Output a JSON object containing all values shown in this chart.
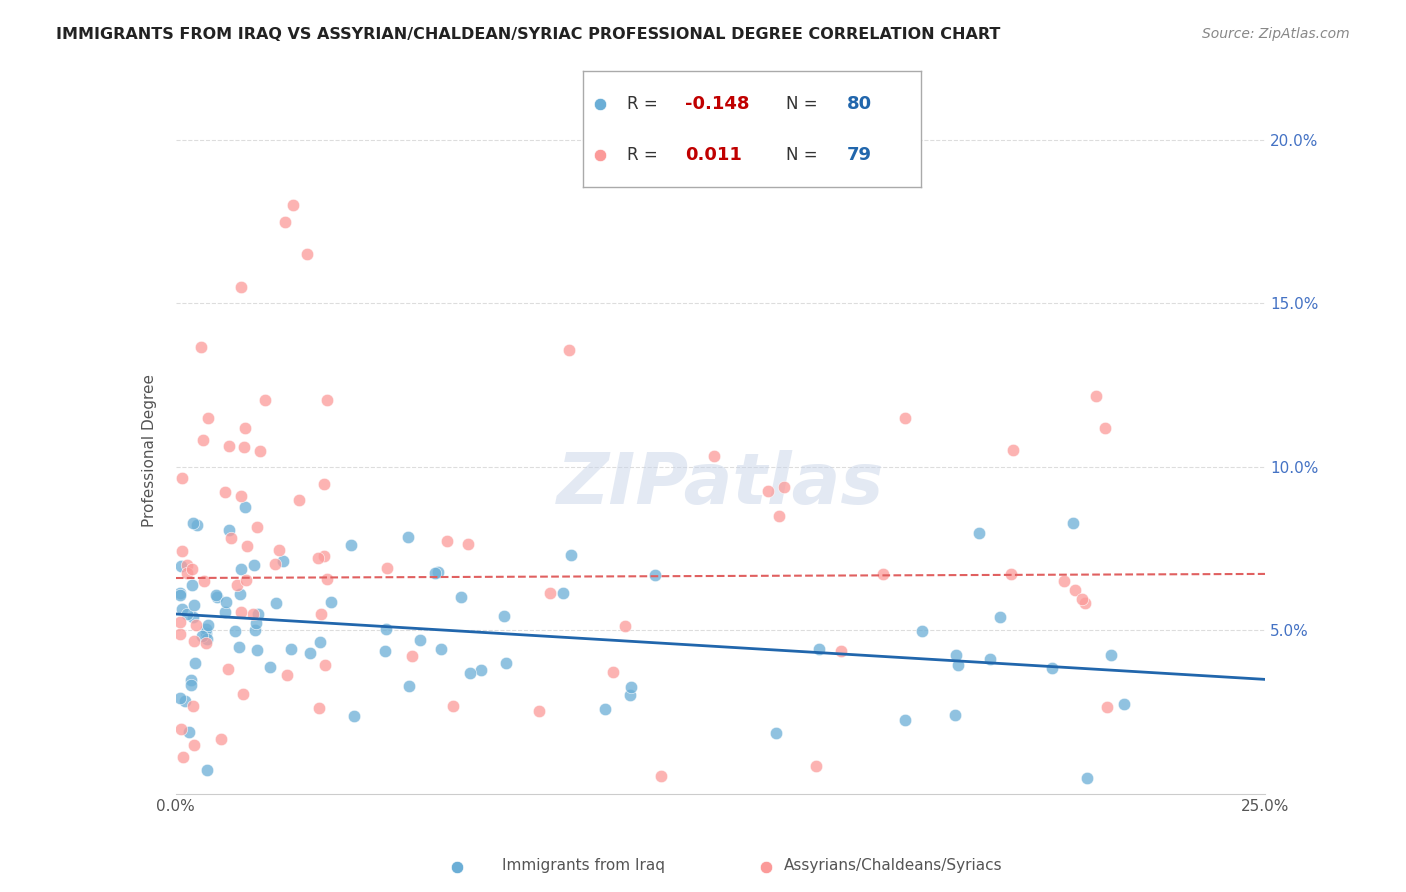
{
  "title": "IMMIGRANTS FROM IRAQ VS ASSYRIAN/CHALDEAN/SYRIAC PROFESSIONAL DEGREE CORRELATION CHART",
  "source": "Source: ZipAtlas.com",
  "ylabel": "Professional Degree",
  "xlim": [
    0.0,
    0.25
  ],
  "ylim": [
    0.0,
    0.21
  ],
  "legend_blue_r": "-0.148",
  "legend_blue_n": "80",
  "legend_pink_r": "0.011",
  "legend_pink_n": "79",
  "blue_color": "#6baed6",
  "pink_color": "#fb9a99",
  "trendline_blue_color": "#2166ac",
  "trendline_pink_color": "#e06060",
  "background_color": "#ffffff",
  "grid_color": "#dddddd",
  "right_tick_color": "#4472c4"
}
